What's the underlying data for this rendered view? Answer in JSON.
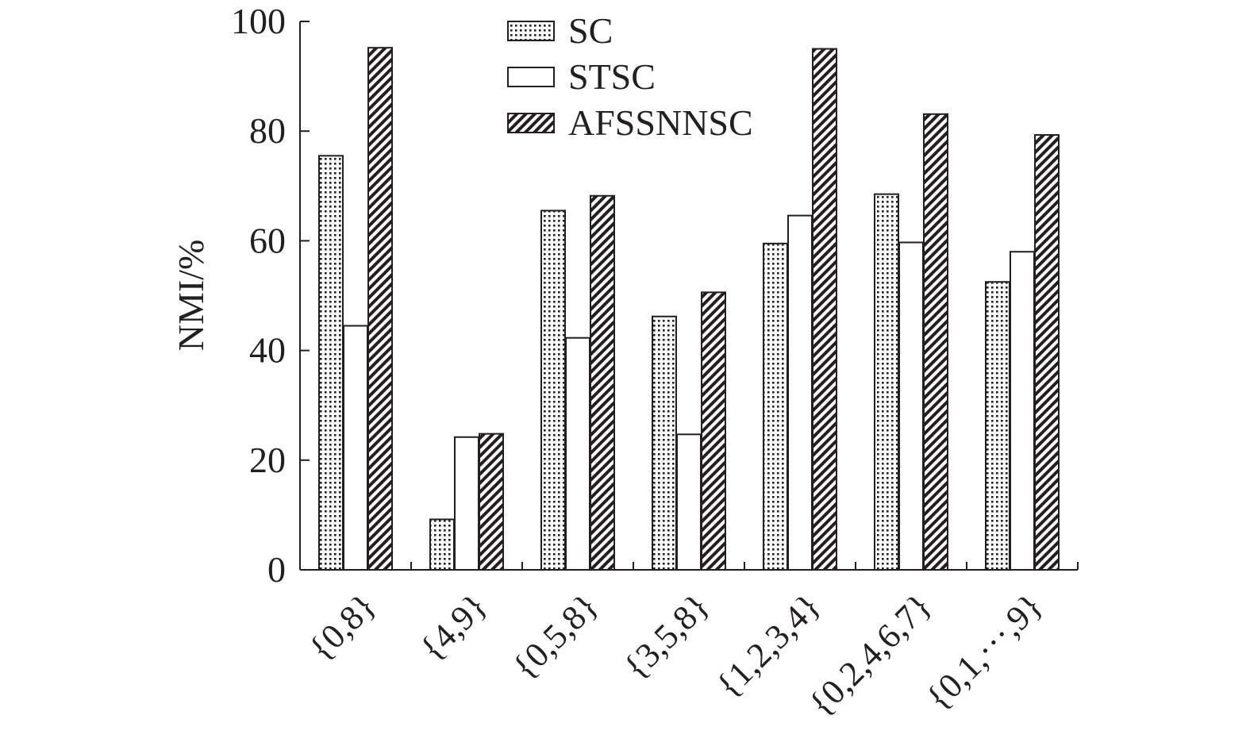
{
  "chart_data": {
    "type": "bar",
    "title": "",
    "xlabel": "",
    "ylabel": "NMI/%",
    "ylim": [
      0,
      100
    ],
    "yticks": [
      "0",
      "20",
      "40",
      "60",
      "80",
      "100"
    ],
    "grid": false,
    "legend_position": "top-center",
    "categories": [
      "{0,8}",
      "{4,9}",
      "{0,5,8}",
      "{3,5,8}",
      "{1,2,3,4}",
      "{0,2,4,6,7}",
      "{0,1,···,9}"
    ],
    "series": [
      {
        "name": "SC",
        "pattern": "dotted",
        "values": [
          75.5,
          9.2,
          65.5,
          46.2,
          59.5,
          68.5,
          52.5
        ]
      },
      {
        "name": "STSC",
        "pattern": "plain",
        "values": [
          44.5,
          24.2,
          42.3,
          24.7,
          64.6,
          59.7,
          58.0
        ]
      },
      {
        "name": "AFSSNNSC",
        "pattern": "hatched",
        "values": [
          95.2,
          24.8,
          68.2,
          50.6,
          95.0,
          83.1,
          79.3
        ]
      }
    ],
    "colors": {
      "ink": "#231f20",
      "fill_light": "#ffffff"
    }
  }
}
